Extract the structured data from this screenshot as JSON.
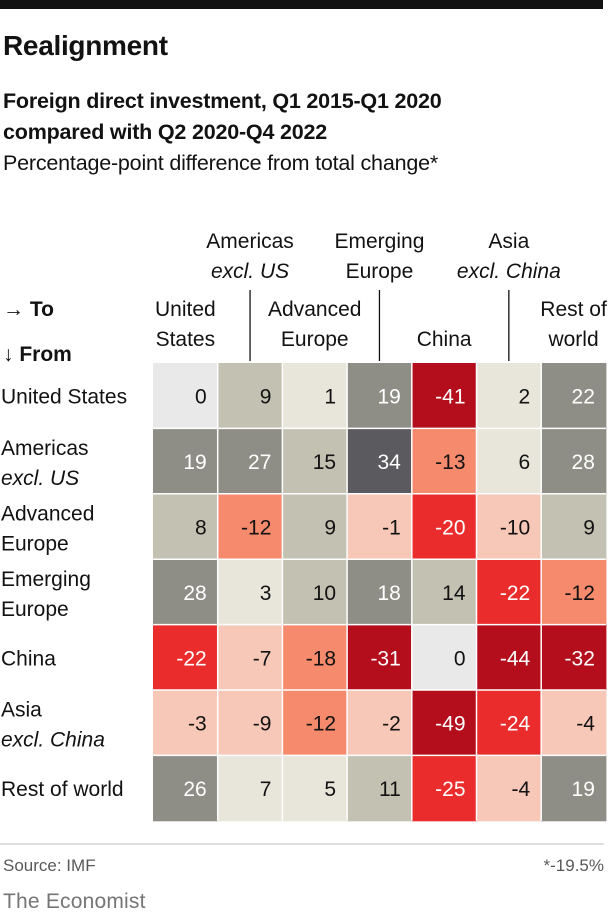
{
  "header": {
    "title": "Realignment",
    "subtitle_line1": "Foreign direct investment, Q1 2015-Q1 2020",
    "subtitle_line2": "compared with Q2 2020-Q4 2022",
    "note": "Percentage-point difference from total change*"
  },
  "footer": {
    "source": "Source: IMF",
    "footnote": "*-19.5%",
    "brand": "The Economist"
  },
  "chart_data": {
    "type": "heatmap",
    "title": "Realignment",
    "row_axis_label": "↓ From",
    "col_axis_label": "→ To",
    "columns": [
      {
        "line1": "United",
        "line1_style": "normal",
        "line2": "States",
        "line2_style": "normal"
      },
      {
        "line1": "Americas",
        "line1_style": "normal",
        "line2": "excl. US",
        "line2_style": "italic"
      },
      {
        "line1": "Advanced",
        "line1_style": "normal",
        "line2": "Europe",
        "line2_style": "normal"
      },
      {
        "line1": "Emerging",
        "line1_style": "normal",
        "line2": "Europe",
        "line2_style": "normal"
      },
      {
        "line1": "China",
        "line1_style": "normal",
        "line2": "",
        "line2_style": "normal"
      },
      {
        "line1": "Asia",
        "line1_style": "normal",
        "line2": "excl. China",
        "line2_style": "italic"
      },
      {
        "line1": "Rest of",
        "line1_style": "normal",
        "line2": "world",
        "line2_style": "normal"
      }
    ],
    "rows": [
      {
        "line1": "United States",
        "line2": "",
        "line2_style": "normal"
      },
      {
        "line1": "Americas",
        "line2": "excl. US",
        "line2_style": "italic"
      },
      {
        "line1": "Advanced",
        "line2": "Europe",
        "line2_style": "normal"
      },
      {
        "line1": "Emerging",
        "line2": "Europe",
        "line2_style": "normal"
      },
      {
        "line1": "China",
        "line2": "",
        "line2_style": "normal"
      },
      {
        "line1": "Asia",
        "line2": "excl. China",
        "line2_style": "italic"
      },
      {
        "line1": "Rest of world",
        "line2": "",
        "line2_style": "normal"
      }
    ],
    "values": [
      [
        0,
        9,
        1,
        19,
        -41,
        2,
        22
      ],
      [
        19,
        27,
        15,
        34,
        -13,
        6,
        28
      ],
      [
        8,
        -12,
        9,
        -1,
        -20,
        -10,
        9
      ],
      [
        28,
        3,
        10,
        18,
        14,
        -22,
        -12
      ],
      [
        -22,
        -7,
        -18,
        -31,
        0,
        -44,
        -32
      ],
      [
        -3,
        -9,
        -12,
        -2,
        -49,
        -24,
        -4
      ],
      [
        26,
        7,
        5,
        11,
        -25,
        -4,
        19
      ]
    ],
    "units": "percentage points",
    "colors": {
      "pos_light": "#e8e6db",
      "pos_mid": "#c3c1b2",
      "pos_dark": "#8e8e86",
      "pos_darkest": "#5b5a5e",
      "neg_light": "#f7c7b8",
      "neg_mid": "#f58a6c",
      "neg_strong": "#ea2c2c",
      "neg_darkest": "#b40d1b",
      "zero": "#e9e9e9"
    }
  }
}
